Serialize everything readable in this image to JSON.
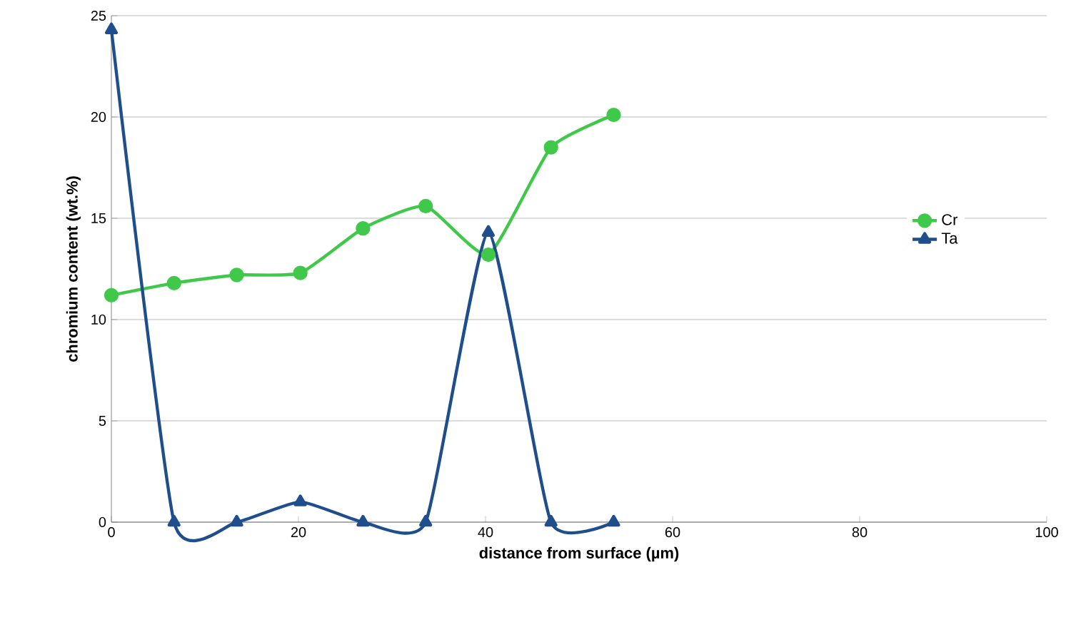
{
  "chart_data": {
    "type": "line",
    "xlabel": "distance from surface (µm)",
    "ylabel": "chromium content (wt.%)",
    "xlim": [
      0,
      100
    ],
    "xticks": [
      0,
      20,
      40,
      60,
      80,
      100
    ],
    "ylim": [
      0,
      25
    ],
    "yticks": [
      0,
      5,
      10,
      15,
      20,
      25
    ],
    "grid": "y",
    "legend": "right",
    "line_style": "solid",
    "series": [
      {
        "name": "Cr",
        "color": "#3fc84a",
        "marker": "circle",
        "x": [
          0,
          6.7,
          13.4,
          20.2,
          26.9,
          33.6,
          40.3,
          47.0,
          53.7
        ],
        "values": [
          11.2,
          11.8,
          12.2,
          12.3,
          14.5,
          15.6,
          13.2,
          18.5,
          20.1
        ]
      },
      {
        "name": "Ta",
        "color": "#1f4e8c",
        "marker": "triangle",
        "x": [
          0,
          6.7,
          13.4,
          20.2,
          26.9,
          33.6,
          40.3,
          47.0,
          53.7
        ],
        "values": [
          24.3,
          0,
          0,
          1.0,
          0,
          0,
          14.3,
          0,
          0
        ]
      }
    ]
  }
}
